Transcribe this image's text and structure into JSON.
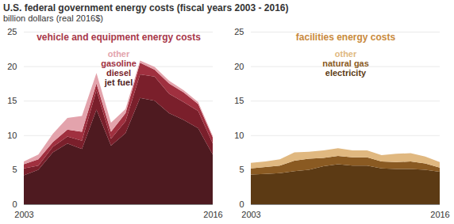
{
  "title": "U.S. federal government energy costs (fiscal years 2003 - 2016)",
  "subtitle": "billion dollars (real 2016$)",
  "chart_data": [
    {
      "type": "area",
      "stacked": true,
      "grid": true,
      "title": "vehicle and equipment energy costs",
      "color": "#a8384a",
      "x": [
        2003,
        2004,
        2005,
        2006,
        2007,
        2008,
        2009,
        2010,
        2011,
        2012,
        2013,
        2014,
        2015,
        2016
      ],
      "xlim": [
        2003,
        2016
      ],
      "xticks": [
        2003,
        2016
      ],
      "ylim": [
        0,
        25
      ],
      "yticks": [
        0,
        5,
        10,
        15,
        20,
        25
      ],
      "series": [
        {
          "name": "jet fuel",
          "color": "#4e1a20",
          "values": [
            4.2,
            5.0,
            7.5,
            8.8,
            8.0,
            13.7,
            8.5,
            10.3,
            15.4,
            15.0,
            13.2,
            12.2,
            11.0,
            7.2
          ]
        },
        {
          "name": "diesel",
          "color": "#7a1f2b",
          "values": [
            1.0,
            0.6,
            0.8,
            1.0,
            1.2,
            2.8,
            1.0,
            1.7,
            3.4,
            3.5,
            2.8,
            2.6,
            2.5,
            1.6
          ]
        },
        {
          "name": "gasoline",
          "color": "#a0303f",
          "values": [
            0.6,
            0.9,
            0.7,
            1.0,
            1.3,
            1.0,
            1.0,
            1.2,
            1.7,
            1.0,
            1.5,
            1.4,
            1.0,
            0.9
          ]
        },
        {
          "name": "other",
          "color": "#e3a3ac",
          "values": [
            0.4,
            0.7,
            1.2,
            1.7,
            2.3,
            1.5,
            1.3,
            0.6,
            0.3,
            0.4,
            0.4,
            0.3,
            0.3,
            0.2
          ]
        }
      ]
    },
    {
      "type": "area",
      "stacked": true,
      "grid": true,
      "title": "facilities energy costs",
      "color": "#c98a3c",
      "x": [
        2003,
        2004,
        2005,
        2006,
        2007,
        2008,
        2009,
        2010,
        2011,
        2012,
        2013,
        2014,
        2015,
        2016
      ],
      "xlim": [
        2003,
        2016
      ],
      "xticks": [
        2003,
        2016
      ],
      "ylim": [
        0,
        25
      ],
      "yticks": [
        0,
        5,
        10,
        15,
        20,
        25
      ],
      "series": [
        {
          "name": "electricity",
          "color": "#5c3a14",
          "values": [
            4.3,
            4.4,
            4.5,
            4.8,
            5.0,
            5.5,
            5.8,
            5.6,
            5.6,
            5.2,
            5.1,
            5.1,
            5.0,
            4.7
          ]
        },
        {
          "name": "natural gas",
          "color": "#8a5a22",
          "values": [
            0.9,
            1.0,
            1.1,
            1.5,
            1.6,
            1.2,
            1.2,
            1.2,
            1.2,
            1.0,
            1.0,
            1.1,
            0.9,
            0.6
          ]
        },
        {
          "name": "other",
          "color": "#e0b880",
          "values": [
            0.8,
            0.8,
            0.9,
            1.2,
            1.0,
            1.1,
            1.1,
            1.0,
            1.0,
            0.9,
            1.2,
            1.2,
            1.0,
            0.8
          ]
        }
      ]
    }
  ]
}
